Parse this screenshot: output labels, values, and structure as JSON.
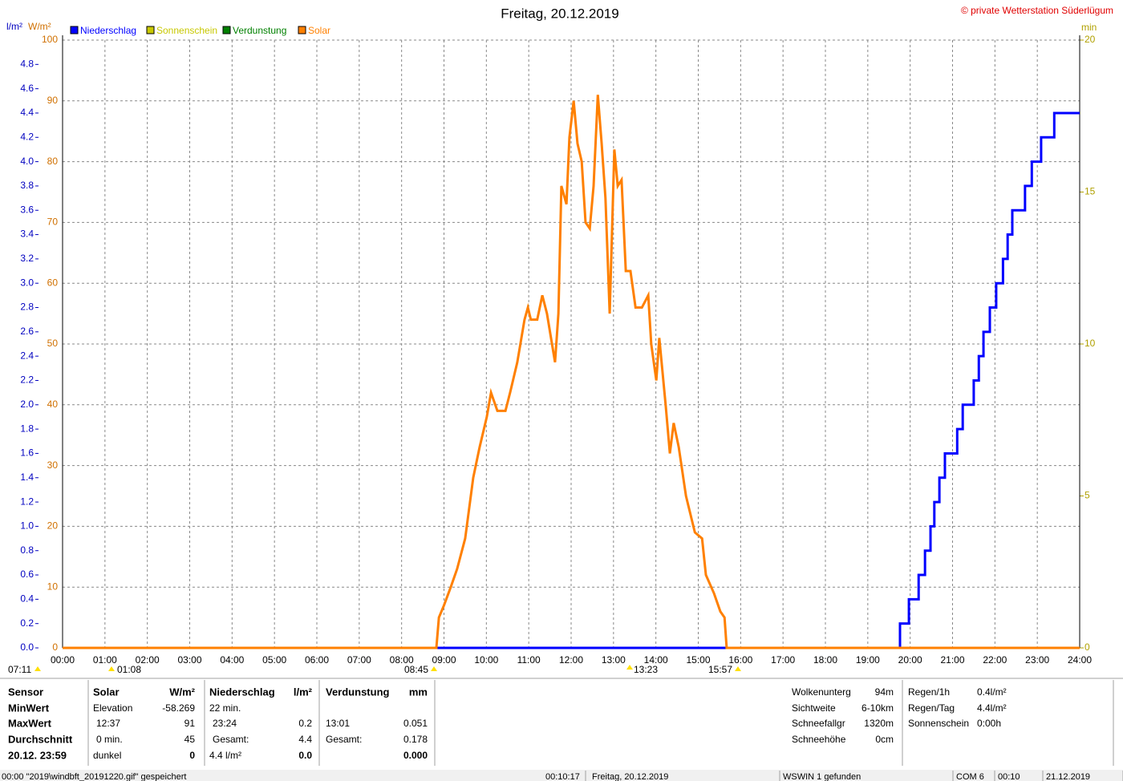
{
  "chart_data": {
    "type": "line",
    "title": "Freitag, 20.12.2019",
    "subtitle": "© private Wetterstation Süderlügum",
    "ylabel": "l/m²",
    "y2label": "W/m²",
    "y3label": "min",
    "xlim": [
      0,
      24
    ],
    "xticks": [
      {
        "value": 0,
        "label": "00:00"
      },
      {
        "value": 1,
        "label": "01:00"
      },
      {
        "value": 2,
        "label": "02:00"
      },
      {
        "value": 3,
        "label": "03:00"
      },
      {
        "value": 4,
        "label": "04:00"
      },
      {
        "value": 5,
        "label": "05:00"
      },
      {
        "value": 6,
        "label": "06:00"
      },
      {
        "value": 7,
        "label": "07:00"
      },
      {
        "value": 8,
        "label": "08:00"
      },
      {
        "value": 9,
        "label": "09:00"
      },
      {
        "value": 10,
        "label": "10:00"
      },
      {
        "value": 11,
        "label": "11:00"
      },
      {
        "value": 12,
        "label": "12:00"
      },
      {
        "value": 13,
        "label": "13:00"
      },
      {
        "value": 14,
        "label": "14:00"
      },
      {
        "value": 15,
        "label": "15:00"
      },
      {
        "value": 16,
        "label": "16:00"
      },
      {
        "value": 17,
        "label": "17:00"
      },
      {
        "value": 18,
        "label": "18:00"
      },
      {
        "value": 19,
        "label": "19:00"
      },
      {
        "value": 20,
        "label": "20:00"
      },
      {
        "value": 21,
        "label": "21:00"
      },
      {
        "value": 22,
        "label": "22:00"
      },
      {
        "value": 23,
        "label": "23:00"
      },
      {
        "value": 24,
        "label": "24:00"
      }
    ],
    "ylim": [
      0,
      5
    ],
    "yticks": [
      {
        "value": 0,
        "label": "0.0"
      },
      0.2,
      0.4,
      0.6,
      0.8,
      {
        "value": 1,
        "label": "1.0"
      },
      1.2,
      1.4,
      1.6,
      1.8,
      {
        "value": 2,
        "label": "2.0"
      },
      2.2,
      2.4,
      2.6,
      2.8,
      {
        "value": 3,
        "label": "3.0"
      },
      3.2,
      3.4,
      3.6,
      3.8,
      {
        "value": 4,
        "label": "4.0"
      },
      4.2,
      4.4,
      4.6,
      4.8
    ],
    "y2lim": [
      0,
      100
    ],
    "y2ticks": [
      0,
      10,
      20,
      30,
      40,
      50,
      60,
      70,
      80,
      90,
      100
    ],
    "y3lim": [
      0,
      20
    ],
    "y3ticks": [
      0,
      5,
      10,
      15,
      20
    ],
    "grid": true,
    "series": [
      {
        "name": "Niederschlag",
        "color": "#0000ff",
        "axis": "y",
        "step": "post",
        "x": [
          0,
          19.76,
          19.97,
          20.2,
          20.35,
          20.48,
          20.57,
          20.69,
          20.82,
          21.11,
          21.24,
          21.5,
          21.62,
          21.73,
          21.88,
          22.03,
          22.19,
          22.3,
          22.41,
          22.71,
          22.87,
          23.09,
          23.4,
          24
        ],
        "values": [
          0,
          0.2,
          0.4,
          0.6,
          0.8,
          1.0,
          1.2,
          1.4,
          1.6,
          1.8,
          2.0,
          2.2,
          2.4,
          2.6,
          2.8,
          3.0,
          3.2,
          3.4,
          3.6,
          3.8,
          4.0,
          4.2,
          4.4,
          4.4
        ]
      },
      {
        "name": "Sonnenschein",
        "color": "#c8c800",
        "axis": "y3",
        "x": [
          0,
          24
        ],
        "values": [
          0,
          0
        ]
      },
      {
        "name": "Verdunstung",
        "color": "#008000",
        "axis": "y",
        "x": [
          0,
          24
        ],
        "values": [
          0,
          0
        ]
      },
      {
        "name": "Solar",
        "color": "#ff8000",
        "axis": "y2",
        "x": [
          0,
          8.75,
          8.82,
          8.88,
          9.0,
          9.16,
          9.31,
          9.5,
          9.69,
          9.84,
          10.01,
          10.11,
          10.26,
          10.45,
          10.56,
          10.73,
          10.9,
          10.98,
          11.05,
          11.2,
          11.32,
          11.43,
          11.62,
          11.7,
          11.77,
          11.89,
          11.96,
          12.06,
          12.15,
          12.25,
          12.34,
          12.44,
          12.53,
          12.63,
          12.72,
          12.81,
          12.91,
          13.02,
          13.1,
          13.19,
          13.29,
          13.4,
          13.52,
          13.67,
          13.82,
          13.89,
          14.01,
          14.08,
          14.23,
          14.33,
          14.42,
          14.54,
          14.71,
          14.92,
          15.09,
          15.18,
          15.37,
          15.52,
          15.62,
          15.67,
          24
        ],
        "values": [
          0,
          0,
          0,
          5,
          7,
          10,
          13,
          18,
          28,
          33,
          38,
          42,
          39,
          39,
          42,
          47,
          54,
          56,
          54,
          54,
          58,
          55,
          47,
          55,
          76,
          73,
          84,
          90,
          83,
          80,
          70,
          69,
          76,
          91,
          83,
          74,
          55,
          82,
          76,
          77,
          62,
          62,
          56,
          56,
          58,
          50,
          44,
          51,
          40,
          32,
          37,
          33,
          25,
          19,
          18,
          12,
          9,
          6,
          5,
          0,
          0
        ]
      }
    ],
    "annotations": [
      "07:11",
      "01:08",
      "08:45",
      "13:23",
      "15:57"
    ]
  },
  "stats": {
    "labels": [
      "Sensor",
      "MinWert",
      "MaxWert",
      "Durchschnitt",
      "20.12. 23:59"
    ],
    "blocks": [
      {
        "title": "Solar",
        "unit": "W/m²",
        "rows": [
          [
            "Elevation",
            "-58.269"
          ],
          [
            "12:37",
            "91"
          ],
          [
            "0 min.",
            "45"
          ],
          [
            "dunkel",
            "0"
          ]
        ]
      },
      {
        "title": "Niederschlag",
        "unit": "l/m²",
        "rows": [
          [
            "22 min.",
            null
          ],
          [
            "23:24",
            "0.2"
          ],
          [
            "Gesamt:",
            "4.4"
          ],
          [
            "4.4 l/m²",
            "0.0"
          ]
        ]
      },
      {
        "title": "Verdunstung",
        "unit": "mm",
        "rows": [
          [
            null,
            null
          ],
          [
            "13:01",
            "0.051"
          ],
          [
            "Gesamt:",
            "0.178"
          ],
          [
            null,
            "0.000"
          ]
        ]
      }
    ]
  },
  "info": [
    [
      [
        "Wolkenunterg",
        "94m"
      ],
      [
        "Sichtweite",
        "6-10km"
      ],
      [
        "Schneefallgr",
        "1320m"
      ],
      [
        "Schneehöhe",
        "0cm"
      ]
    ],
    [
      [
        "Regen/1h",
        "0.4l/m²"
      ],
      [
        "Regen/Tag",
        "4.4l/m²"
      ],
      [
        "Sonnenschein",
        "0:00h"
      ]
    ]
  ],
  "status": [
    "00:00  \"2019\\windbft_20191220.gif\" gespeichert",
    "00:10:17",
    "Freitag, 20.12.2019",
    "WSWIN 1 gefunden",
    "COM 6",
    "00:10",
    "21.12.2019"
  ]
}
